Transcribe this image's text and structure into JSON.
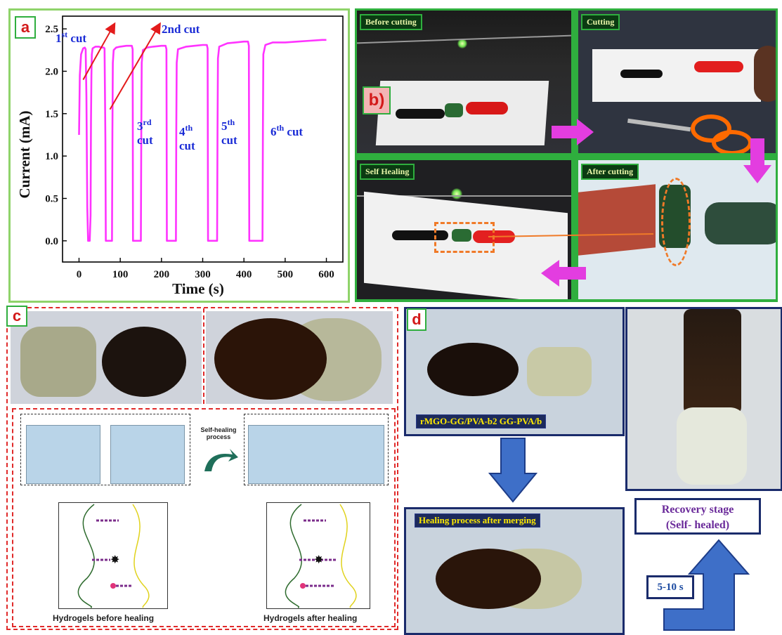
{
  "panels": {
    "a": {
      "letter": "a"
    },
    "b": {
      "letter": "b)",
      "labels": [
        "Before cutting",
        "Cutting",
        "Self Healing",
        "After cutting"
      ]
    },
    "c": {
      "letter": "c",
      "process_label_1": "Self-healing",
      "process_label_2": "process",
      "caption_before": "Hydrogels before healing",
      "caption_after": "Hydrogels after healing"
    },
    "d": {
      "letter": "d",
      "sample_label": "rMGO-GG/PVA-b2  GG-PVA/b",
      "merge_label": "Healing process after merging",
      "recovery_line1": "Recovery stage",
      "recovery_line2": "(Self- healed)",
      "time_label": "5-10 s"
    }
  },
  "chart_data": {
    "type": "line",
    "xlabel": "Time (s)",
    "ylabel": "Current (mA)",
    "xlim": [
      -40,
      640
    ],
    "ylim": [
      -0.25,
      2.65
    ],
    "xticks": [
      0,
      100,
      200,
      300,
      400,
      500,
      600
    ],
    "yticks": [
      0.0,
      0.5,
      1.0,
      1.5,
      2.0,
      2.5
    ],
    "xtick_labels": [
      "0",
      "100",
      "200",
      "300",
      "400",
      "500",
      "600"
    ],
    "ytick_labels": [
      "0.0",
      "0.5",
      "1.0",
      "1.5",
      "2.0",
      "2.5"
    ],
    "color": "#ff33ff",
    "series": [
      {
        "x": [
          0,
          2,
          5,
          10,
          14,
          16,
          18,
          20,
          22,
          24,
          26,
          28,
          29,
          30,
          31,
          33,
          36,
          40,
          48,
          55,
          60,
          62,
          64,
          65,
          80,
          81,
          82,
          84,
          90,
          100,
          115,
          128,
          130,
          131,
          150,
          151,
          152,
          155,
          165,
          180,
          200,
          210,
          212,
          213,
          235,
          236,
          237,
          240,
          260,
          280,
          300,
          310,
          312,
          313,
          335,
          336,
          337,
          340,
          360,
          380,
          400,
          410,
          412,
          413,
          445,
          446,
          447,
          452,
          470,
          500,
          530,
          560,
          590,
          600
        ],
        "y": [
          1.25,
          1.95,
          2.2,
          2.27,
          2.28,
          2.26,
          1.7,
          0.4,
          0.0,
          0.0,
          0.0,
          0.3,
          1.4,
          1.95,
          2.2,
          2.27,
          2.28,
          2.29,
          2.29,
          2.28,
          2.28,
          2.27,
          1.2,
          0.0,
          0.0,
          1.3,
          2.1,
          2.25,
          2.28,
          2.29,
          2.3,
          2.3,
          2.26,
          0.0,
          0.0,
          1.3,
          2.1,
          2.25,
          2.28,
          2.29,
          2.3,
          2.3,
          2.26,
          0.0,
          0.0,
          1.3,
          2.1,
          2.26,
          2.29,
          2.3,
          2.31,
          2.31,
          2.27,
          0.0,
          0.0,
          1.3,
          2.15,
          2.29,
          2.33,
          2.34,
          2.35,
          2.35,
          2.3,
          0.0,
          0.0,
          1.3,
          2.2,
          2.31,
          2.34,
          2.34,
          2.35,
          2.36,
          2.37,
          2.37
        ]
      }
    ],
    "annotations": [
      {
        "text": "1st cut",
        "main": "1",
        "sup": "st",
        "rest": " cut"
      },
      {
        "text": "2nd cut",
        "main": "2nd cut",
        "sup": "",
        "rest": ""
      },
      {
        "text": "3rd cut",
        "main": "3",
        "sup": "rd",
        "rest": "cut"
      },
      {
        "text": "4th cut",
        "main": "4",
        "sup": "th",
        "rest": "cut"
      },
      {
        "text": "5th cut",
        "main": "5",
        "sup": "th",
        "rest": "cut"
      },
      {
        "text": "6th cut",
        "main": "6",
        "sup": "th",
        "rest": " cut"
      }
    ]
  }
}
